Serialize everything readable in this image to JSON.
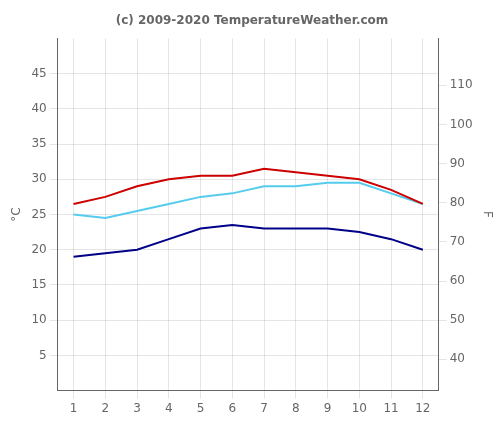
{
  "chart_data": {
    "type": "line",
    "title": "(c) 2009-2020 TemperatureWeather.com",
    "ylabel": "°C",
    "y2label": "F",
    "x": [
      1,
      2,
      3,
      4,
      5,
      6,
      7,
      8,
      9,
      10,
      11,
      12
    ],
    "series": [
      {
        "color": "#cc0000",
        "values": [
          26.5,
          27.5,
          29.0,
          30.0,
          30.5,
          30.5,
          31.5,
          31.0,
          30.5,
          30.0,
          28.5,
          26.5
        ]
      },
      {
        "color": "#55ccee",
        "values": [
          25.0,
          24.5,
          25.5,
          26.5,
          27.5,
          28.0,
          29.0,
          29.0,
          29.5,
          29.5,
          28.0,
          26.5
        ]
      },
      {
        "color": "#000088",
        "values": [
          19.0,
          19.5,
          20.0,
          21.5,
          23.0,
          23.5,
          23.0,
          23.0,
          23.0,
          22.5,
          21.5,
          20.0
        ]
      }
    ],
    "xlim": [
      0.5,
      12.5
    ],
    "xticks": [
      1,
      2,
      3,
      4,
      5,
      6,
      7,
      8,
      9,
      10,
      11,
      12
    ],
    "ylim": [
      0,
      50
    ],
    "yticks": [
      5,
      10,
      15,
      20,
      25,
      30,
      35,
      40,
      45
    ],
    "y2lim": [
      32,
      122
    ],
    "y2ticks": [
      40,
      50,
      60,
      70,
      80,
      90,
      100,
      110
    ],
    "grid": true
  }
}
